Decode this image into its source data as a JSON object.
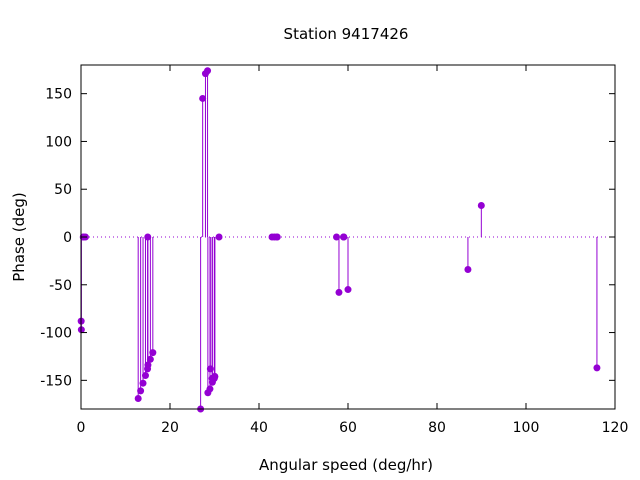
{
  "chart_data": {
    "type": "scatter",
    "title": "Station 9417426",
    "xlabel": "Angular speed (deg/hr)",
    "ylabel": "Phase (deg)",
    "xlim": [
      0,
      120
    ],
    "ylim": [
      -180,
      180
    ],
    "xticks": [
      "0",
      "20",
      "40",
      "60",
      "80",
      "100",
      "120"
    ],
    "yticks": [
      "-150",
      "-100",
      "-50",
      "0",
      "50",
      "100",
      "150"
    ],
    "grid": false,
    "legend": "none",
    "color": "#9400d3",
    "zero_line": true,
    "stems": true,
    "points": [
      {
        "x": 0.04,
        "y": -88
      },
      {
        "x": 0.08,
        "y": -97
      },
      {
        "x": 0.5,
        "y": 0
      },
      {
        "x": 0.6,
        "y": 0
      },
      {
        "x": 1.0,
        "y": 0
      },
      {
        "x": 12.85,
        "y": -169
      },
      {
        "x": 13.4,
        "y": -161
      },
      {
        "x": 13.94,
        "y": -153
      },
      {
        "x": 14.49,
        "y": -145
      },
      {
        "x": 14.96,
        "y": -138
      },
      {
        "x": 15.0,
        "y": 0
      },
      {
        "x": 15.04,
        "y": -134
      },
      {
        "x": 15.59,
        "y": -128
      },
      {
        "x": 16.14,
        "y": -121
      },
      {
        "x": 26.88,
        "y": -180
      },
      {
        "x": 27.34,
        "y": 145
      },
      {
        "x": 27.97,
        "y": 171
      },
      {
        "x": 28.44,
        "y": 174
      },
      {
        "x": 28.51,
        "y": -163
      },
      {
        "x": 28.98,
        "y": -159
      },
      {
        "x": 29.07,
        "y": -138
      },
      {
        "x": 29.46,
        "y": -148
      },
      {
        "x": 29.53,
        "y": -152
      },
      {
        "x": 29.96,
        "y": -148
      },
      {
        "x": 30.04,
        "y": -146
      },
      {
        "x": 30.08,
        "y": -146
      },
      {
        "x": 31.02,
        "y": 0
      },
      {
        "x": 42.93,
        "y": 0
      },
      {
        "x": 43.48,
        "y": 0
      },
      {
        "x": 44.03,
        "y": 0
      },
      {
        "x": 44.1,
        "y": 0
      },
      {
        "x": 57.42,
        "y": 0
      },
      {
        "x": 57.97,
        "y": -58
      },
      {
        "x": 58.98,
        "y": 0
      },
      {
        "x": 59.07,
        "y": 0
      },
      {
        "x": 60.0,
        "y": -55
      },
      {
        "x": 86.95,
        "y": -34
      },
      {
        "x": 89.96,
        "y": 33
      },
      {
        "x": 115.94,
        "y": -137
      }
    ]
  }
}
